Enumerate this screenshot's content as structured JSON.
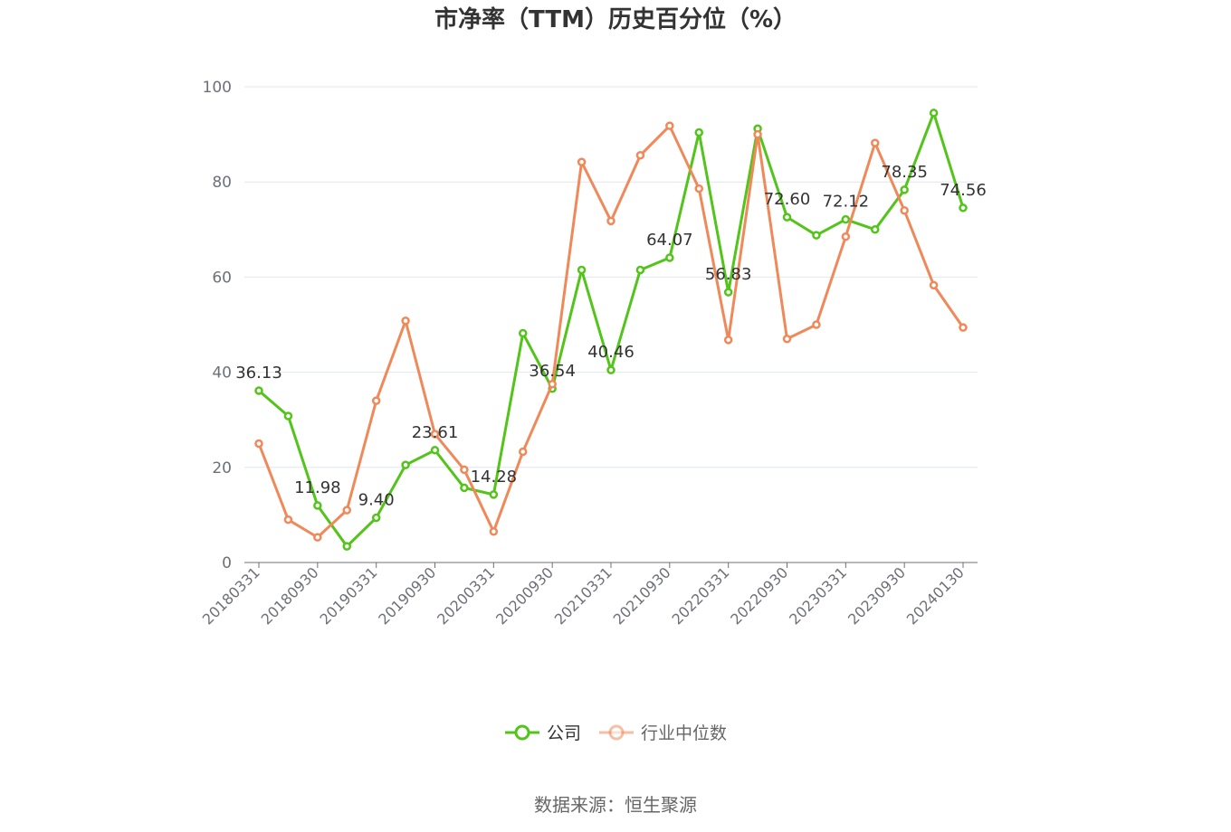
{
  "title": "市净率（TTM）历史百分位（%）",
  "source": "数据来源：恒生聚源",
  "colors": {
    "company": "#52c41a",
    "industry": "#f0895a",
    "grid": "#e0e6f1",
    "axis": "#6e7079",
    "text": "#333333"
  },
  "chart_data": {
    "type": "line",
    "title": "市净率（TTM）历史百分位（%）",
    "ylim": [
      0,
      100
    ],
    "y_ticks": [
      0,
      20,
      40,
      60,
      80,
      100
    ],
    "grid": true,
    "legend_position": "bottom",
    "x_tick_labels": [
      "20180331",
      "20180930",
      "20190331",
      "20190930",
      "20200331",
      "20200930",
      "20210331",
      "20210930",
      "20220331",
      "20220930",
      "20230331",
      "20230930",
      "20240130"
    ],
    "x": [
      "20180331",
      "20180630",
      "20180930",
      "20181231",
      "20190331",
      "20190630",
      "20190930",
      "20191231",
      "20200331",
      "20200630",
      "20200930",
      "20201231",
      "20210331",
      "20210630",
      "20210930",
      "20211231",
      "20220331",
      "20220630",
      "20220930",
      "20221231",
      "20230331",
      "20230630",
      "20230930",
      "20231231",
      "20240130"
    ],
    "series": [
      {
        "name": "公司",
        "color": "#52c41a",
        "values": [
          36.13,
          30.8,
          11.98,
          3.4,
          9.4,
          20.5,
          23.61,
          15.7,
          14.28,
          48.2,
          36.54,
          61.5,
          40.46,
          61.5,
          64.07,
          90.4,
          56.83,
          91.2,
          72.6,
          68.8,
          72.12,
          70.0,
          78.35,
          94.5,
          74.56
        ],
        "labels": [
          "36.13",
          "",
          "11.98",
          "",
          "9.40",
          "",
          "23.61",
          "",
          "14.28",
          "",
          "36.54",
          "",
          "40.46",
          "",
          "64.07",
          "",
          "56.83",
          "",
          "72.60",
          "",
          "72.12",
          "",
          "78.35",
          "",
          "74.56"
        ]
      },
      {
        "name": "行业中位数",
        "color": "#f0895a",
        "values": [
          25.0,
          9.0,
          5.3,
          11.0,
          34.0,
          50.8,
          27.0,
          19.5,
          6.5,
          23.3,
          37.5,
          84.2,
          71.8,
          85.6,
          91.8,
          78.6,
          46.8,
          90.0,
          47.0,
          50.0,
          68.5,
          88.2,
          74.0,
          58.3,
          49.4
        ]
      }
    ]
  }
}
